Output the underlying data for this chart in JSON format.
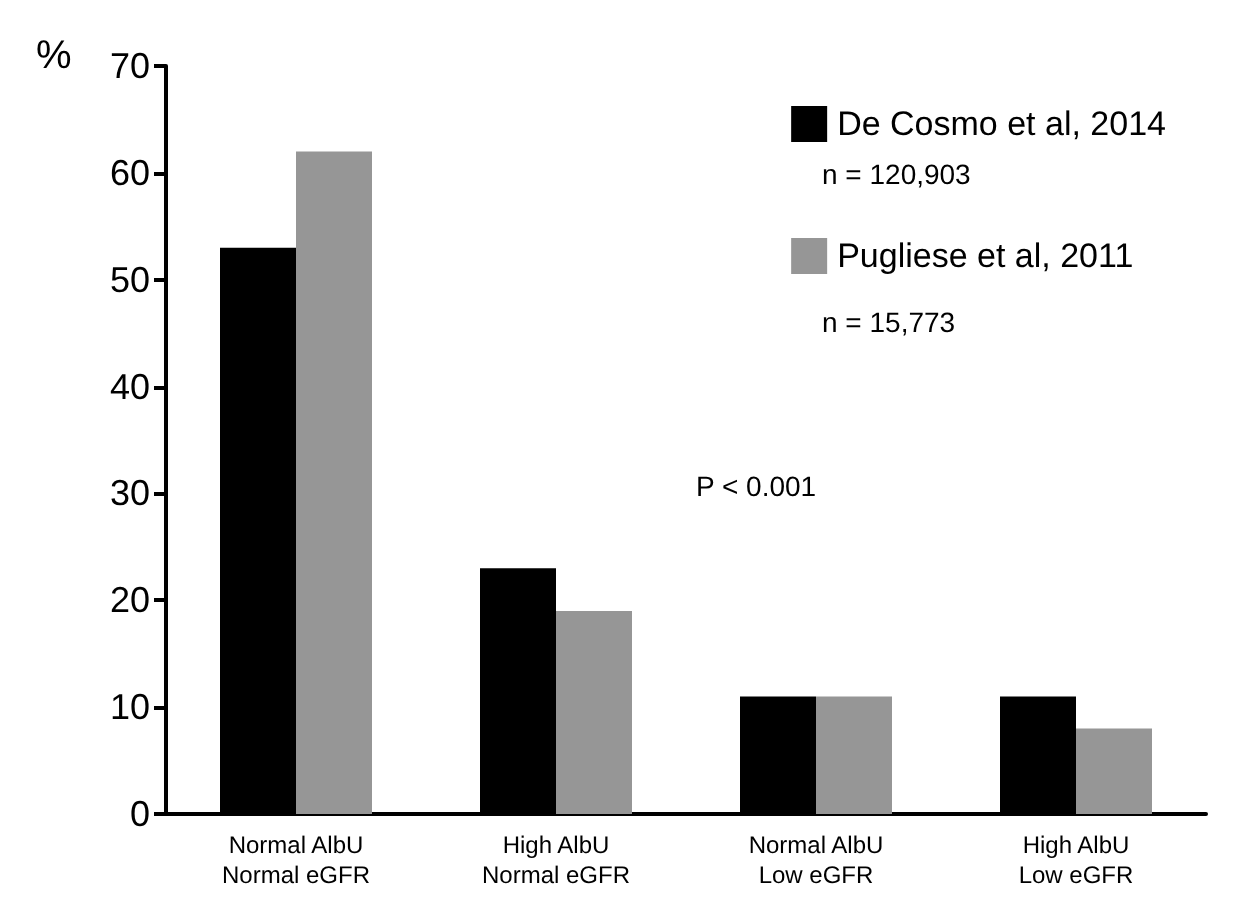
{
  "chart_data": {
    "type": "bar",
    "ylabel": "%",
    "categories": [
      "Normal AlbU\nNormal eGFR",
      "High AlbU\nNormal eGFR",
      "Normal AlbU\nLow eGFR",
      "High AlbU\nLow eGFR"
    ],
    "series": [
      {
        "name": "De Cosmo et al, 2014",
        "color": "#000000",
        "values": [
          53,
          23,
          11,
          11
        ]
      },
      {
        "name": "Pugliese et al, 2011",
        "color": "#969696",
        "values": [
          62,
          19,
          11,
          8
        ]
      }
    ],
    "ylim": [
      0,
      70
    ],
    "yticks": [
      0,
      10,
      20,
      30,
      40,
      50,
      60,
      70
    ],
    "grid": false,
    "legend": "top right",
    "annotations": [
      "n = 120,903",
      "n = 15,773",
      "P < 0.001"
    ]
  }
}
